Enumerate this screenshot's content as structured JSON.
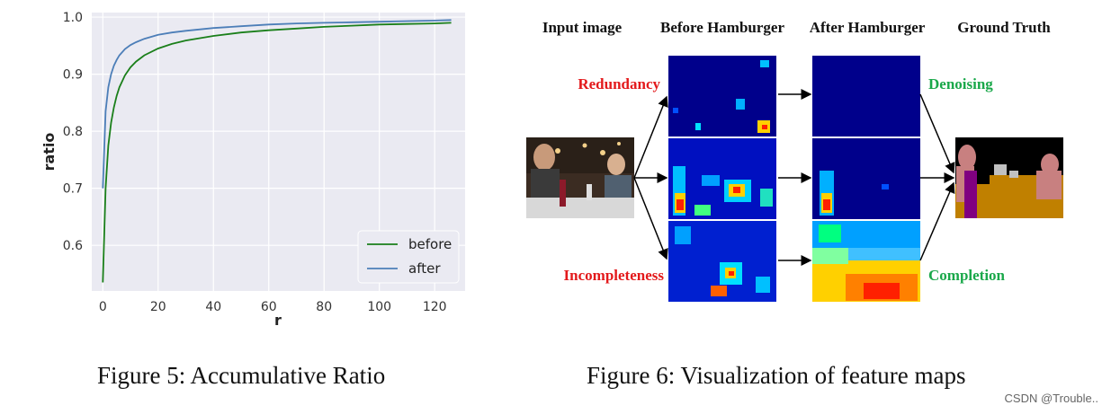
{
  "chart_data": {
    "type": "line",
    "xlabel": "r",
    "ylabel": "ratio",
    "xlim": [
      -4,
      131
    ],
    "ylim": [
      0.52,
      1.008
    ],
    "xticks": [
      0,
      20,
      40,
      60,
      80,
      100,
      120
    ],
    "yticks": [
      0.6,
      0.7,
      0.8,
      0.9,
      1.0
    ],
    "ytick_labels": [
      "0.6",
      "0.7",
      "0.8",
      "0.9",
      "1.0"
    ],
    "grid": true,
    "legend_position": "bottom-right",
    "series": [
      {
        "name": "before",
        "color": "#1a7f1a",
        "x": [
          0,
          1,
          2,
          3,
          4,
          5,
          6,
          8,
          10,
          12,
          15,
          20,
          25,
          30,
          40,
          50,
          60,
          70,
          80,
          90,
          100,
          110,
          120,
          126
        ],
        "y": [
          0.535,
          0.7,
          0.775,
          0.815,
          0.842,
          0.862,
          0.877,
          0.898,
          0.912,
          0.922,
          0.933,
          0.945,
          0.953,
          0.959,
          0.967,
          0.973,
          0.977,
          0.98,
          0.983,
          0.985,
          0.987,
          0.988,
          0.989,
          0.99
        ]
      },
      {
        "name": "after",
        "color": "#4c7eb8",
        "x": [
          0,
          1,
          2,
          3,
          4,
          5,
          6,
          8,
          10,
          12,
          15,
          20,
          25,
          30,
          40,
          50,
          60,
          70,
          80,
          90,
          100,
          110,
          120,
          126
        ],
        "y": [
          0.7,
          0.835,
          0.877,
          0.9,
          0.915,
          0.925,
          0.933,
          0.944,
          0.951,
          0.956,
          0.962,
          0.969,
          0.973,
          0.976,
          0.981,
          0.984,
          0.987,
          0.989,
          0.99,
          0.991,
          0.992,
          0.993,
          0.994,
          0.995
        ]
      }
    ]
  },
  "figure5": {
    "caption": "Figure 5: Accumulative Ratio"
  },
  "figure6": {
    "caption": "Figure 6: Visualization of feature maps",
    "column_headers": [
      "Input image",
      "Before Hamburger",
      "After Hamburger",
      "Ground Truth"
    ],
    "labels_left": [
      "Redundancy",
      "Incompleteness"
    ],
    "labels_right": [
      "Denoising",
      "Completion"
    ],
    "colors": {
      "red_label": "#e31a1c",
      "green_label": "#1aa84a",
      "heatmap_bg": "#00008b"
    }
  },
  "watermark": "CSDN @Trouble.."
}
